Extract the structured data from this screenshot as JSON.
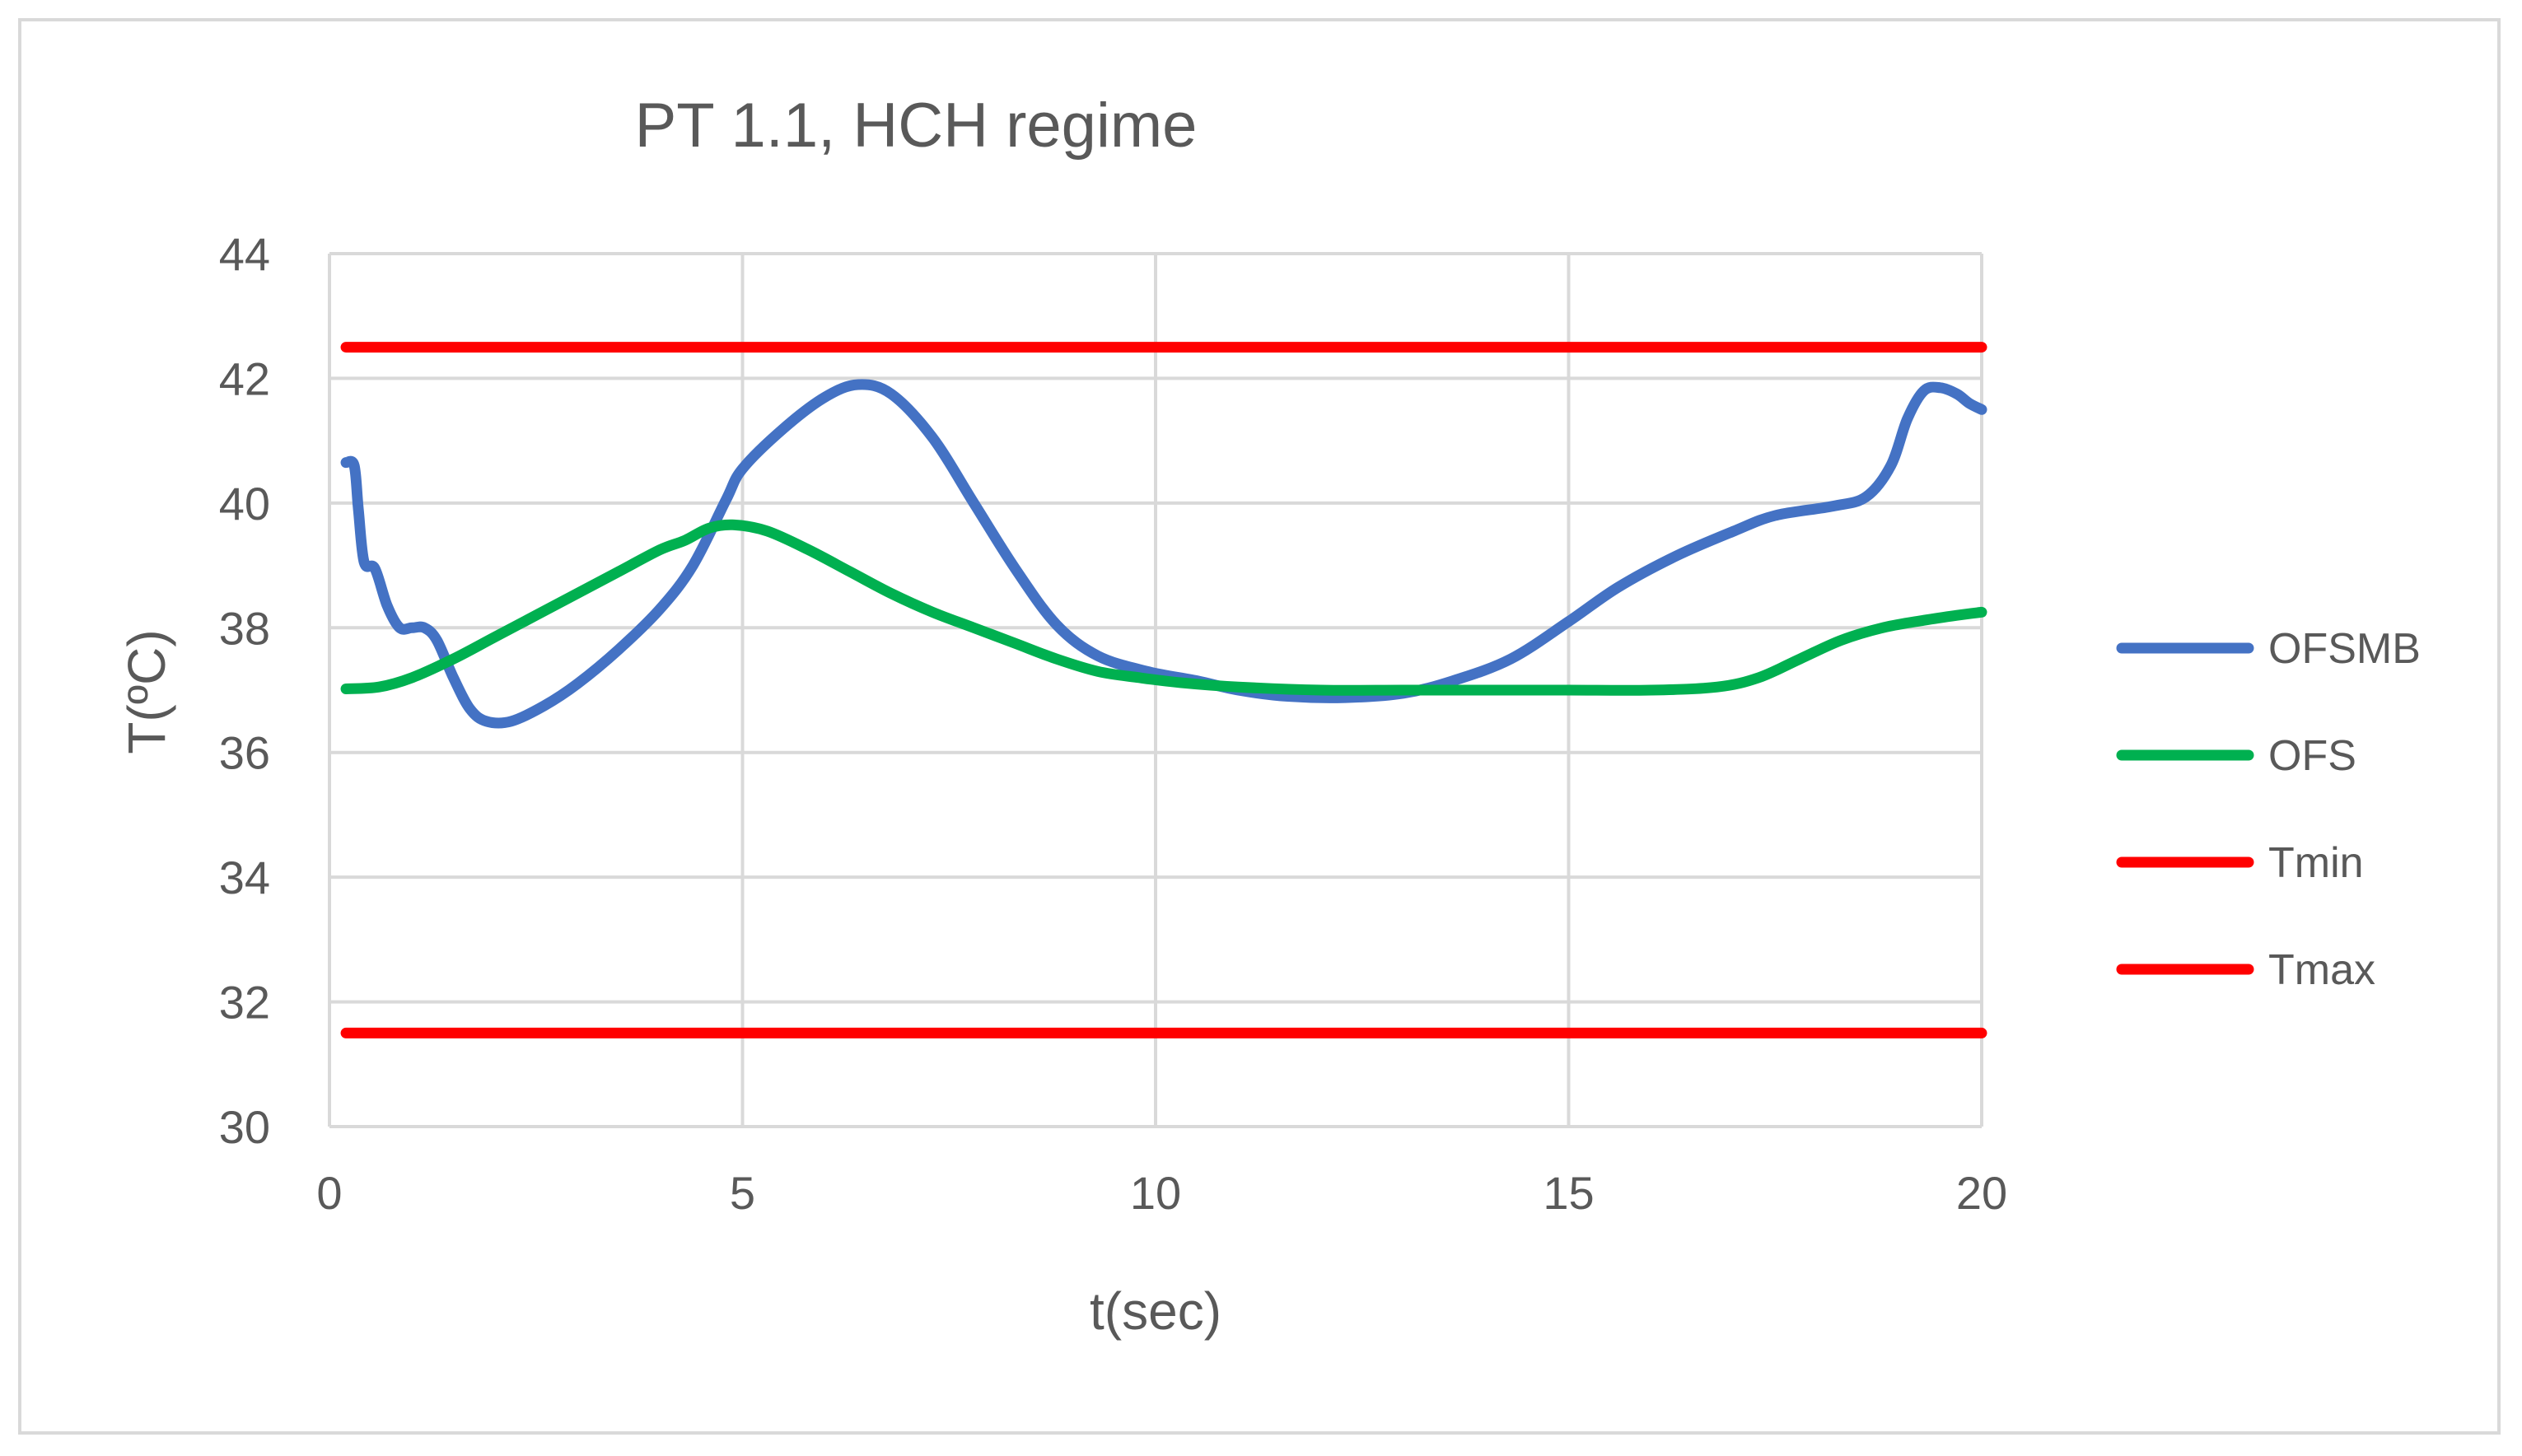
{
  "chart_data": {
    "type": "line",
    "title": "PT 1.1, HCH regime",
    "xlabel": "t(sec)",
    "ylabel": "T(ºC)",
    "xlim": [
      0,
      20
    ],
    "ylim": [
      30,
      44
    ],
    "x_ticks": [
      0,
      5,
      10,
      15,
      20
    ],
    "y_ticks": [
      30,
      32,
      34,
      36,
      38,
      40,
      42,
      44
    ],
    "grid": true,
    "legend_position": "right",
    "series": [
      {
        "name": "OFSMB",
        "color": "#4472c4",
        "points": [
          [
            0.2,
            40.65
          ],
          [
            0.3,
            40.6
          ],
          [
            0.35,
            39.9
          ],
          [
            0.42,
            39.05
          ],
          [
            0.55,
            38.95
          ],
          [
            0.7,
            38.35
          ],
          [
            0.85,
            38.0
          ],
          [
            1.0,
            38.0
          ],
          [
            1.15,
            38.0
          ],
          [
            1.3,
            37.8
          ],
          [
            1.5,
            37.2
          ],
          [
            1.7,
            36.7
          ],
          [
            1.9,
            36.5
          ],
          [
            2.2,
            36.5
          ],
          [
            2.6,
            36.75
          ],
          [
            3.0,
            37.1
          ],
          [
            3.5,
            37.65
          ],
          [
            4.0,
            38.3
          ],
          [
            4.4,
            39.0
          ],
          [
            4.8,
            40.05
          ],
          [
            5.0,
            40.55
          ],
          [
            5.5,
            41.2
          ],
          [
            6.0,
            41.7
          ],
          [
            6.4,
            41.9
          ],
          [
            6.8,
            41.75
          ],
          [
            7.3,
            41.05
          ],
          [
            7.8,
            40.0
          ],
          [
            8.3,
            38.95
          ],
          [
            8.8,
            38.05
          ],
          [
            9.3,
            37.55
          ],
          [
            9.9,
            37.3
          ],
          [
            10.5,
            37.15
          ],
          [
            11.0,
            37.0
          ],
          [
            11.6,
            36.9
          ],
          [
            12.3,
            36.88
          ],
          [
            13.0,
            36.95
          ],
          [
            13.6,
            37.15
          ],
          [
            14.3,
            37.5
          ],
          [
            15.0,
            38.1
          ],
          [
            15.6,
            38.65
          ],
          [
            16.3,
            39.15
          ],
          [
            17.0,
            39.55
          ],
          [
            17.5,
            39.8
          ],
          [
            18.2,
            39.95
          ],
          [
            18.6,
            40.1
          ],
          [
            18.9,
            40.6
          ],
          [
            19.1,
            41.35
          ],
          [
            19.3,
            41.8
          ],
          [
            19.5,
            41.85
          ],
          [
            19.7,
            41.75
          ],
          [
            19.85,
            41.6
          ],
          [
            20.0,
            41.5
          ]
        ]
      },
      {
        "name": "OFS",
        "color": "#00b050",
        "points": [
          [
            0.2,
            37.02
          ],
          [
            0.6,
            37.05
          ],
          [
            1.0,
            37.2
          ],
          [
            1.5,
            37.5
          ],
          [
            2.0,
            37.85
          ],
          [
            2.5,
            38.2
          ],
          [
            3.0,
            38.55
          ],
          [
            3.5,
            38.9
          ],
          [
            4.0,
            39.25
          ],
          [
            4.3,
            39.4
          ],
          [
            4.6,
            39.6
          ],
          [
            4.9,
            39.65
          ],
          [
            5.3,
            39.55
          ],
          [
            5.8,
            39.25
          ],
          [
            6.3,
            38.9
          ],
          [
            6.8,
            38.55
          ],
          [
            7.3,
            38.25
          ],
          [
            7.8,
            38.0
          ],
          [
            8.3,
            37.75
          ],
          [
            8.8,
            37.5
          ],
          [
            9.3,
            37.3
          ],
          [
            9.8,
            37.2
          ],
          [
            10.3,
            37.12
          ],
          [
            11.0,
            37.05
          ],
          [
            12.0,
            37.0
          ],
          [
            13.0,
            37.0
          ],
          [
            14.0,
            37.0
          ],
          [
            15.0,
            37.0
          ],
          [
            16.0,
            37.0
          ],
          [
            16.8,
            37.05
          ],
          [
            17.3,
            37.2
          ],
          [
            17.8,
            37.5
          ],
          [
            18.3,
            37.8
          ],
          [
            18.8,
            38.0
          ],
          [
            19.3,
            38.12
          ],
          [
            19.7,
            38.2
          ],
          [
            20.0,
            38.25
          ]
        ]
      },
      {
        "name": "Tmin",
        "color": "#ff0000",
        "points": [
          [
            0.2,
            42.5
          ],
          [
            20.0,
            42.5
          ]
        ]
      },
      {
        "name": "Tmax",
        "color": "#ff0000",
        "points": [
          [
            0.2,
            31.5
          ],
          [
            20.0,
            31.5
          ]
        ]
      }
    ]
  }
}
